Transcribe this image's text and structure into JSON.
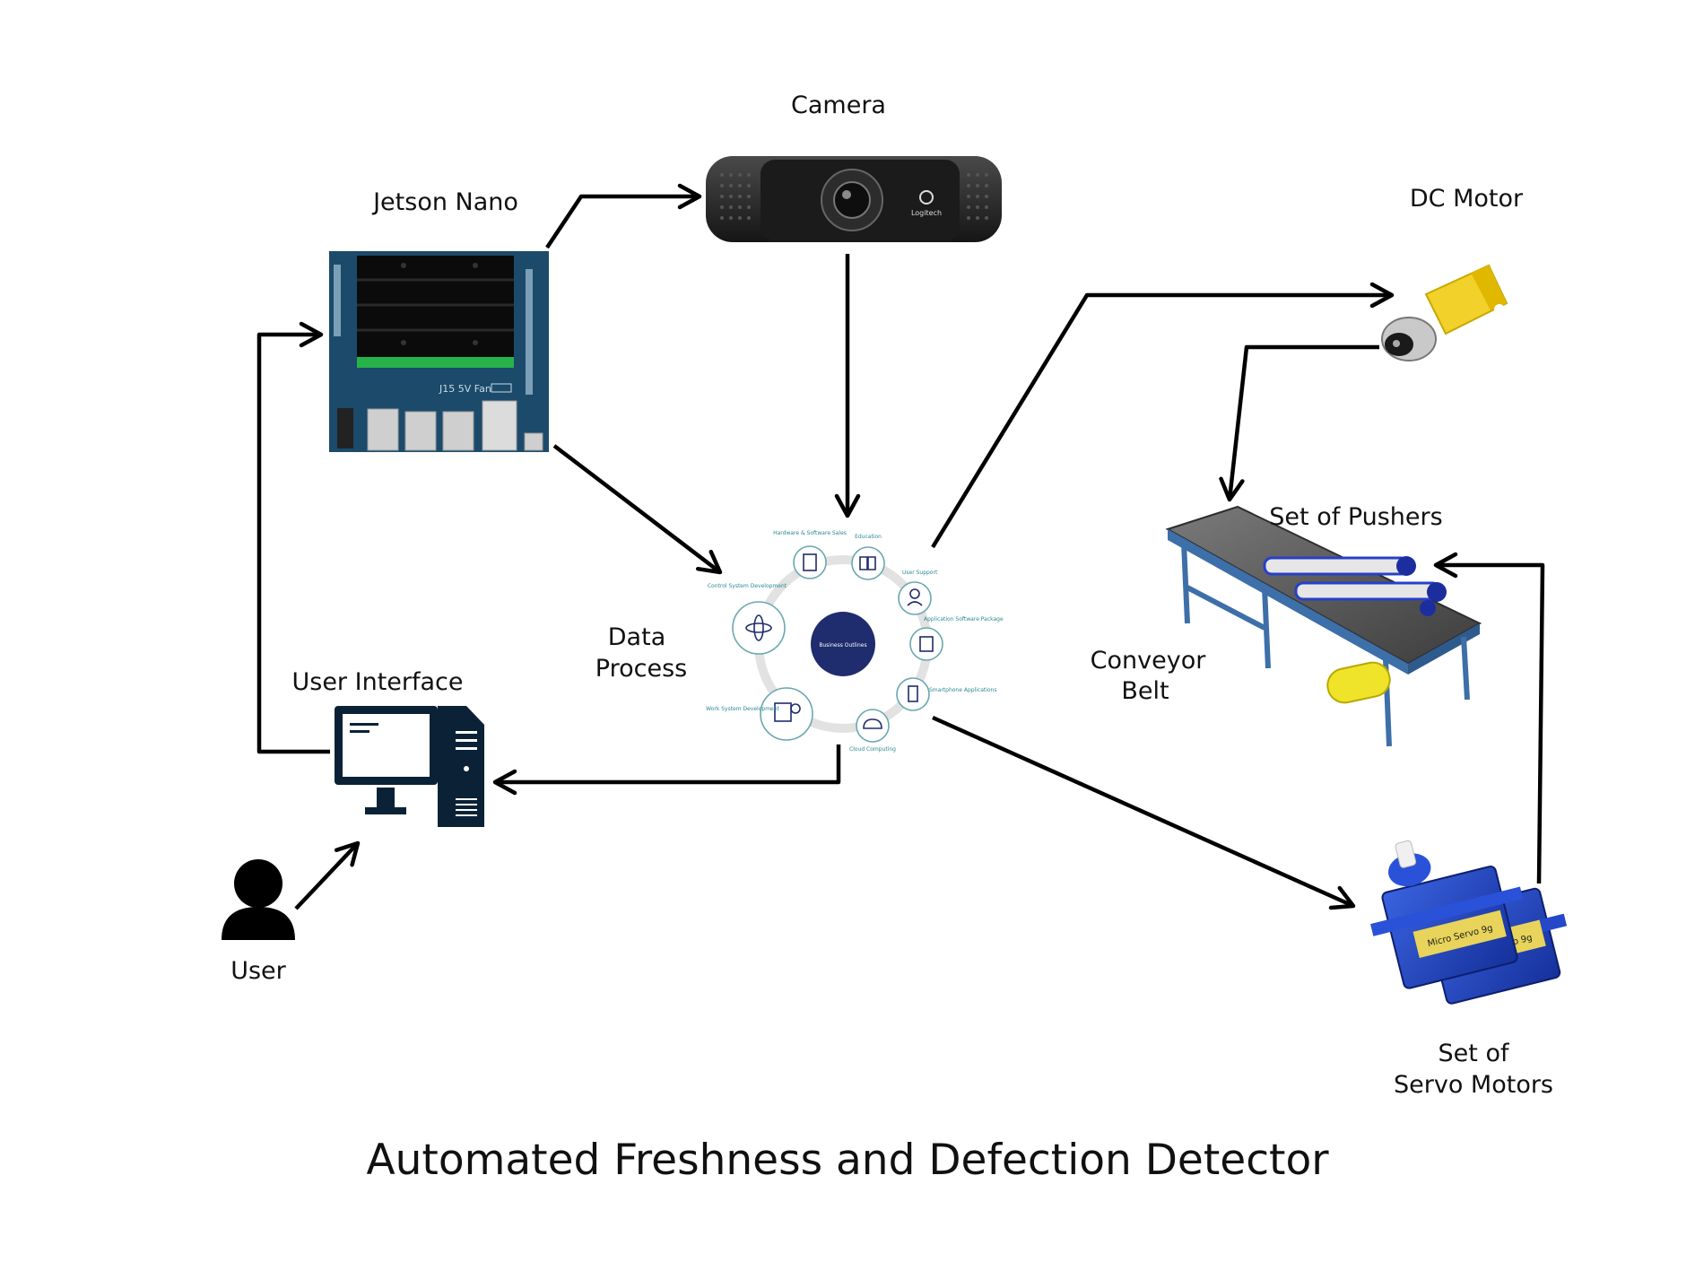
{
  "labels": {
    "camera": "Camera",
    "jetson_nano": "Jetson Nano",
    "dc_motor": "DC Motor",
    "set_of_pushers": "Set of Pushers",
    "conveyor_line1": "Conveyor",
    "conveyor_line2": "Belt",
    "data_line1": "Data",
    "data_line2": "Process",
    "user_interface": "User Interface",
    "user": "User",
    "servo_line1": "Set of",
    "servo_line2": "Servo Motors"
  },
  "title": "Automated Freshness and Defection Detector",
  "jetson_board_text": "J15 5V Fan",
  "camera_brand": "Logitech",
  "servo_label_text": "Micro Servo 9g",
  "data_process_wheel": {
    "center": "Business Outlines",
    "items": [
      "Hardware & Software Sales",
      "Education",
      "User Support",
      "Application Software Package",
      "Smartphone Applications",
      "Cloud Computing",
      "Work System Development",
      "Control System Development"
    ]
  },
  "colors": {
    "arrow": "#000000",
    "board": "#1c4a6b",
    "wheel_center": "#1f2c6e",
    "wheel_accent": "#2a8a94",
    "servo": "#1b3fb8",
    "motor": "#f2d12a"
  }
}
